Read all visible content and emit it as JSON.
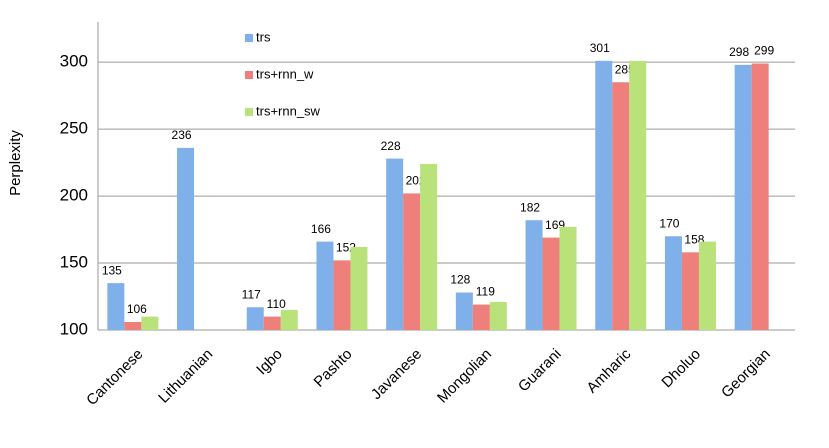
{
  "chart_data": {
    "type": "bar",
    "y_label": "Perplexity",
    "categories": [
      "Cantonese",
      "Lithuanian",
      "Igbo",
      "Pashto",
      "Javanese",
      "Mongolian",
      "Guarani",
      "Amharic",
      "Dholuo",
      "Georgian"
    ],
    "series": [
      {
        "name": "trs",
        "color": "#7fb0ea",
        "show_labels": true,
        "values": [
          135,
          236,
          117,
          166,
          228,
          128,
          182,
          301,
          170,
          298
        ]
      },
      {
        "name": "trs+rnn_w",
        "color": "#ef7f7a",
        "show_labels": true,
        "values": [
          106,
          null,
          110,
          152,
          202,
          119,
          169,
          285,
          158,
          299
        ]
      },
      {
        "name": "trs+rnn_sw",
        "color": "#b9e27a",
        "show_labels": false,
        "values": [
          110,
          null,
          115,
          162,
          224,
          121,
          177,
          301,
          166,
          null
        ]
      }
    ],
    "ylim": [
      100,
      330
    ],
    "yticks": [
      100,
      150,
      200,
      250,
      300
    ],
    "grid": true
  }
}
